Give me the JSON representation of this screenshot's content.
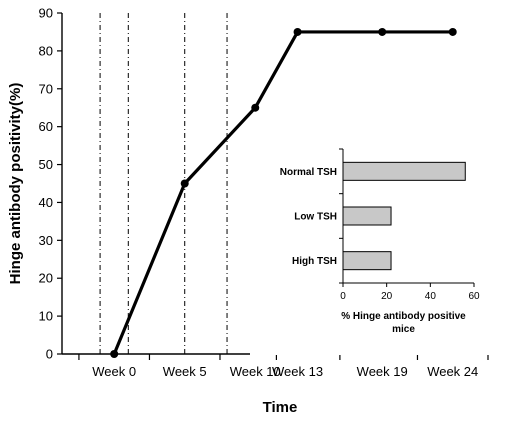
{
  "chart_data": [
    {
      "type": "line",
      "title": "",
      "xlabel": "Time",
      "ylabel": "Hinge antibody positivity(%)",
      "categories": [
        "Week 0",
        "Week 5",
        "Week 10",
        "Week 13",
        "Week 19",
        "Week 24"
      ],
      "x": [
        0,
        5,
        10,
        13,
        19,
        24
      ],
      "ylim": [
        0,
        90
      ],
      "yticks": [
        0,
        10,
        20,
        30,
        40,
        50,
        60,
        70,
        80,
        90
      ],
      "series": [
        {
          "x": [
            0,
            5,
            10,
            13,
            19,
            24
          ],
          "values": [
            0,
            45,
            65,
            85,
            85,
            85
          ]
        }
      ],
      "vertical_dashdot_lines_x": [
        -1,
        1,
        5,
        8
      ],
      "grid": false,
      "colors": {
        "line": "#000000",
        "marker": "#000000"
      }
    },
    {
      "type": "bar",
      "orientation": "horizontal",
      "title": "",
      "xlabel": "% Hinge antibody positive mice",
      "categories": [
        "Normal TSH",
        "Low TSH",
        "High TSH"
      ],
      "values": [
        56,
        22,
        22
      ],
      "xlim": [
        0,
        60
      ],
      "xticks": [
        0,
        20,
        40,
        60
      ],
      "colors": {
        "bar_fill": "#c8c8c8",
        "bar_stroke": "#000000"
      }
    }
  ]
}
